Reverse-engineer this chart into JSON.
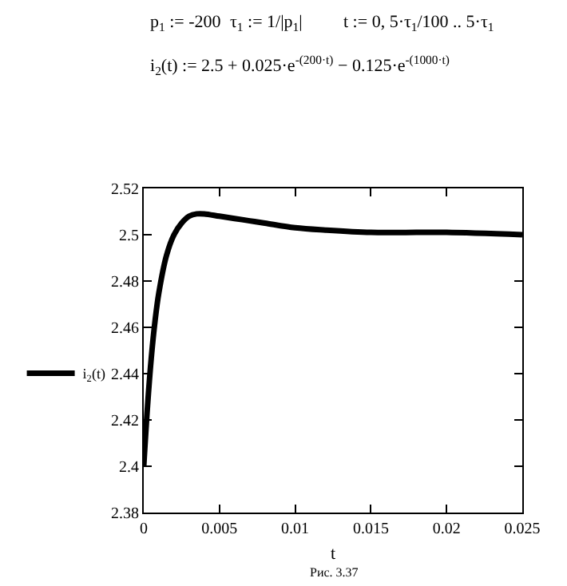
{
  "chart_data": {
    "type": "line",
    "xlabel": "t",
    "x": [
      0,
      0.00025,
      0.0005,
      0.00075,
      0.001,
      0.0015,
      0.002,
      0.0025,
      0.003,
      0.0035,
      0.004,
      0.005,
      0.006,
      0.007,
      0.008,
      0.01,
      0.012,
      0.015,
      0.018,
      0.02,
      0.025
    ],
    "series": [
      {
        "name": "i$_{2}$(t)",
        "color": "#000000",
        "values": [
          2.4,
          2.426,
          2.447,
          2.463,
          2.475,
          2.491,
          2.5,
          2.505,
          2.508,
          2.509,
          2.509,
          2.508,
          2.507,
          2.506,
          2.505,
          2.503,
          2.502,
          2.501,
          2.501,
          2.501,
          2.5
        ]
      }
    ],
    "xlim": [
      0,
      0.025
    ],
    "xticks": [
      0,
      0.005,
      0.01,
      0.015,
      0.02,
      0.025
    ],
    "ylim": [
      2.38,
      2.52
    ],
    "yticks": [
      2.38,
      2.4,
      2.42,
      2.44,
      2.46,
      2.48,
      2.5,
      2.52
    ],
    "grid": false,
    "legend": "left",
    "marker": "none",
    "line_style": "solid",
    "annotations": [
      "p$_{1}$ := -200",
      "τ$_{1}$ := 1/|p$_{1}$|",
      "t := 0, 5·τ$_{1}$/100 .. 5·τ$_{1}$",
      "i$_{2}$(t) := 2.5 + 0.025·e$^{-(200·t)}$ − 0.125·e$^{-(1000·t)}$",
      "Рис. 3.37"
    ]
  }
}
